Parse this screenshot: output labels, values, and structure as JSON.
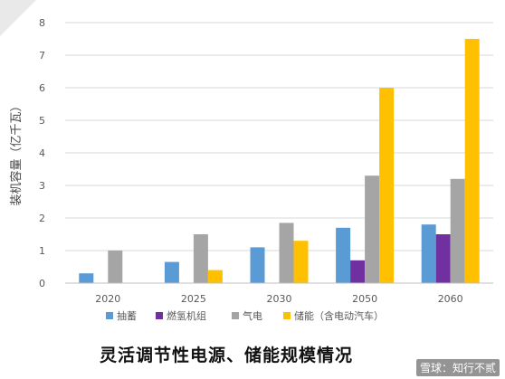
{
  "chart_data": {
    "type": "bar",
    "categories": [
      "2020",
      "2025",
      "2030",
      "2050",
      "2060"
    ],
    "series": [
      {
        "name": "抽蓄",
        "color": "#5b9bd5",
        "values": [
          0.3,
          0.65,
          1.1,
          1.7,
          1.8
        ]
      },
      {
        "name": "燃氢机组",
        "color": "#7030a0",
        "values": [
          0,
          0,
          0,
          0.7,
          1.5
        ]
      },
      {
        "name": "气电",
        "color": "#a5a5a5",
        "values": [
          1.0,
          1.5,
          1.85,
          3.3,
          3.2
        ]
      },
      {
        "name": "储能（含电动汽车）",
        "color": "#ffc000",
        "values": [
          0,
          0.4,
          1.3,
          6.0,
          7.5
        ]
      }
    ],
    "ylabel": "装机容量（亿千瓦）",
    "ylim": [
      0,
      8
    ],
    "yticks": [
      "0",
      "1",
      "2",
      "3",
      "4",
      "5",
      "6",
      "7",
      "8"
    ],
    "grid": true,
    "legend_position": "bottom"
  },
  "caption": "灵活调节性电源、储能规模情况",
  "watermark": "雪球：知行不贰"
}
